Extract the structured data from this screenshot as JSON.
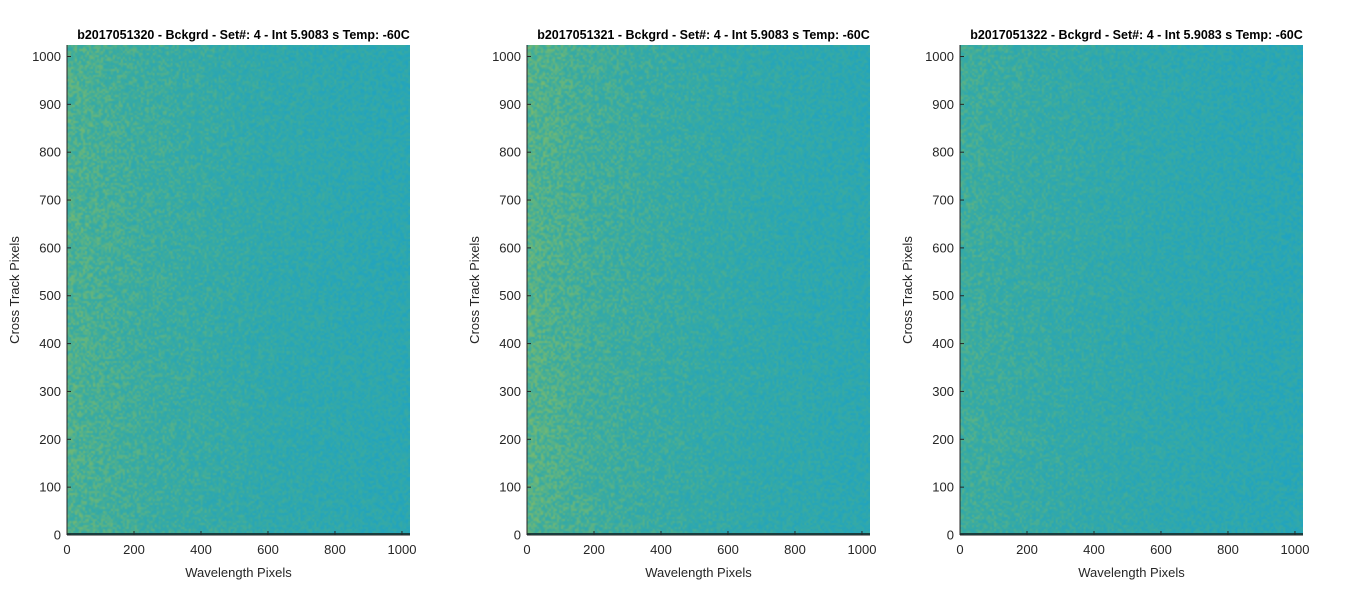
{
  "chart_data": [
    {
      "type": "heatmap",
      "title": "b2017051320 - Bckgrd - Set#: 4 - Int 5.9083 s Temp: -60C",
      "xlabel": "Wavelength Pixels",
      "ylabel": "Cross Track Pixels",
      "xlim": [
        0,
        1024
      ],
      "ylim": [
        0,
        1024
      ],
      "xticks": [
        0,
        200,
        400,
        600,
        800,
        1000
      ],
      "yticks": [
        0,
        100,
        200,
        300,
        400,
        500,
        600,
        700,
        800,
        900,
        1000
      ],
      "colormap": "parula",
      "colors": {
        "high": "#8fbf5c",
        "mid": "#3aaba0",
        "low": "#1ea3c4"
      },
      "gradient": [
        0.62,
        0.5,
        0.42,
        0.34,
        0.3,
        0.26
      ]
    },
    {
      "type": "heatmap",
      "title": "b2017051321 - Bckgrd - Set#: 4 - Int 5.9083 s Temp: -60C",
      "xlabel": "Wavelength Pixels",
      "ylabel": "Cross Track Pixels",
      "xlim": [
        0,
        1024
      ],
      "ylim": [
        0,
        1024
      ],
      "xticks": [
        0,
        200,
        400,
        600,
        800,
        1000
      ],
      "yticks": [
        0,
        100,
        200,
        300,
        400,
        500,
        600,
        700,
        800,
        900,
        1000
      ],
      "colormap": "parula",
      "colors": {
        "high": "#8fbf5c",
        "mid": "#3aaba0",
        "low": "#1ea3c4"
      },
      "gradient": [
        0.66,
        0.52,
        0.43,
        0.36,
        0.31,
        0.27
      ]
    },
    {
      "type": "heatmap",
      "title": "b2017051322 - Bckgrd - Set#: 4 - Int 5.9083 s Temp: -60C",
      "xlabel": "Wavelength Pixels",
      "ylabel": "Cross Track Pixels",
      "xlim": [
        0,
        1024
      ],
      "ylim": [
        0,
        1024
      ],
      "xticks": [
        0,
        200,
        400,
        600,
        800,
        1000
      ],
      "yticks": [
        0,
        100,
        200,
        300,
        400,
        500,
        600,
        700,
        800,
        900,
        1000
      ],
      "colormap": "parula",
      "colors": {
        "high": "#8fbf5c",
        "mid": "#3aaba0",
        "low": "#1ea3c4"
      },
      "gradient": [
        0.5,
        0.42,
        0.36,
        0.31,
        0.27,
        0.24
      ]
    }
  ]
}
